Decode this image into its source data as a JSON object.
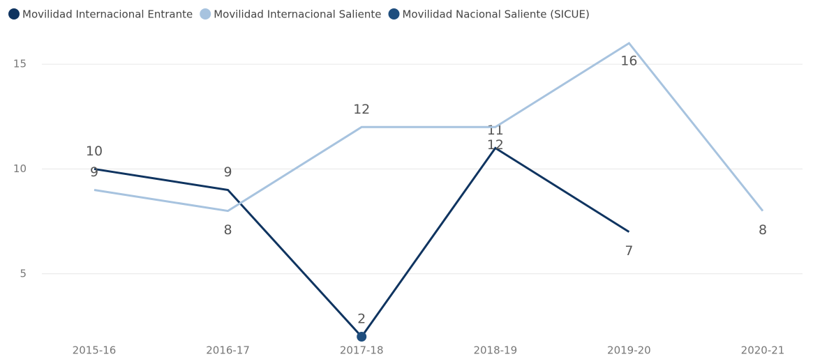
{
  "chart_data": {
    "type": "line",
    "categories": [
      "2015-16",
      "2016-17",
      "2017-18",
      "2018-19",
      "2019-20",
      "2020-21"
    ],
    "series": [
      {
        "name": "Movilidad Internacional Entrante",
        "color": "#0f3460",
        "values": [
          10,
          9,
          2,
          11,
          7,
          null
        ]
      },
      {
        "name": "Movilidad Internacional Saliente",
        "color": "#a7c3df",
        "values": [
          9,
          8,
          12,
          12,
          16,
          8
        ]
      },
      {
        "name": "Movilidad Nacional Saliente (SICUE)",
        "color": "#1f4e7e",
        "values": [
          null,
          null,
          2,
          null,
          null,
          null
        ]
      }
    ],
    "ylim": [
      2,
      16
    ],
    "yticks": [
      5,
      10,
      15
    ],
    "grid": true
  }
}
